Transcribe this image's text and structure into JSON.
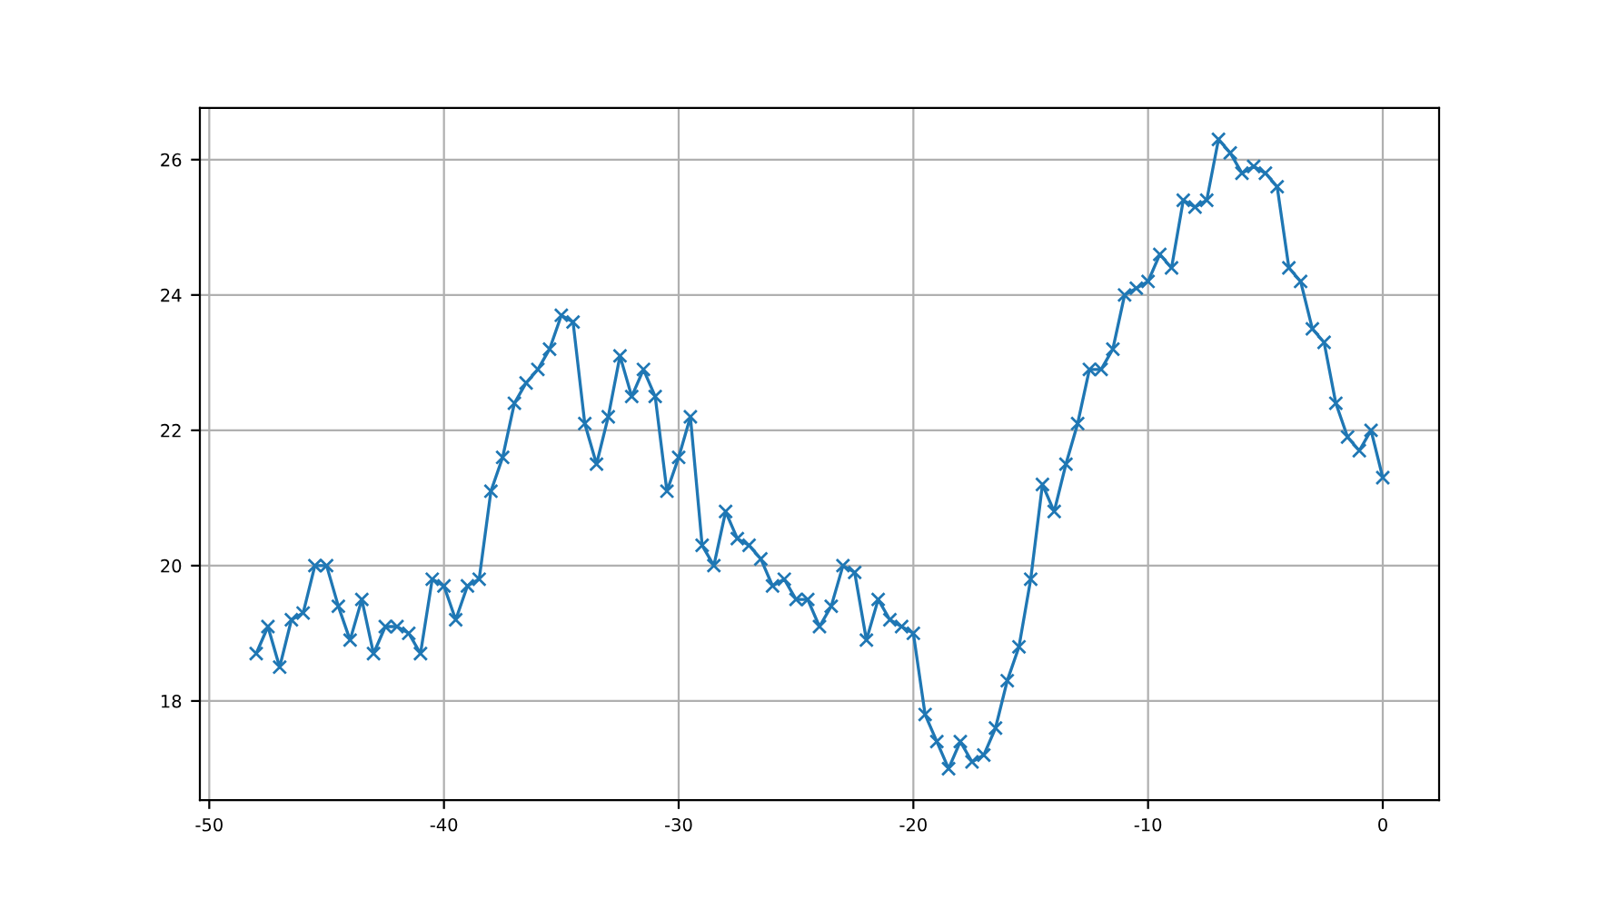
{
  "chart_data": {
    "type": "line",
    "marker": "cross",
    "grid": true,
    "line_style": "solid",
    "x": [
      -48,
      -47.5,
      -47,
      -46.5,
      -46,
      -45.5,
      -45,
      -44.5,
      -44,
      -43.5,
      -43,
      -42.5,
      -42,
      -41.5,
      -41,
      -40.5,
      -40,
      -39.5,
      -39,
      -38.5,
      -38,
      -37.5,
      -37,
      -36.5,
      -36,
      -35.5,
      -35,
      -34.5,
      -34,
      -33.5,
      -33,
      -32.5,
      -32,
      -31.5,
      -31,
      -30.5,
      -30,
      -29.5,
      -29,
      -28.5,
      -28,
      -27.5,
      -27,
      -26.5,
      -26,
      -25.5,
      -25,
      -24.5,
      -24,
      -23.5,
      -23,
      -22.5,
      -22,
      -21.5,
      -21,
      -20.5,
      -20,
      -19.5,
      -19,
      -18.5,
      -18,
      -17.5,
      -17,
      -16.5,
      -16,
      -15.5,
      -15,
      -14.5,
      -14,
      -13.5,
      -13,
      -12.5,
      -12,
      -11.5,
      -11,
      -10.5,
      -10,
      -9.5,
      -9,
      -8.5,
      -8,
      -7.5,
      -7,
      -6.5,
      -6,
      -5.5,
      -5,
      -4.5,
      -4,
      -3.5,
      -3,
      -2.5,
      -2,
      -1.5,
      -1,
      -0.5,
      0
    ],
    "series": [
      {
        "color": "#1f77b4",
        "values": [
          18.7,
          19.1,
          18.5,
          19.2,
          19.3,
          20.0,
          20.0,
          19.4,
          18.9,
          19.5,
          18.7,
          19.1,
          19.1,
          19.0,
          18.7,
          19.8,
          19.7,
          19.2,
          19.7,
          19.8,
          21.1,
          21.6,
          22.4,
          22.7,
          22.9,
          23.2,
          23.7,
          23.6,
          22.1,
          21.5,
          22.2,
          23.1,
          22.5,
          22.9,
          22.5,
          21.1,
          21.6,
          22.2,
          20.3,
          20.0,
          20.8,
          20.4,
          20.3,
          20.1,
          19.7,
          19.8,
          19.5,
          19.5,
          19.1,
          19.4,
          20.0,
          19.9,
          18.9,
          19.5,
          19.2,
          19.1,
          19.0,
          17.8,
          17.4,
          17.0,
          17.4,
          17.1,
          17.2,
          17.6,
          18.3,
          18.8,
          19.8,
          21.2,
          20.8,
          21.5,
          22.1,
          22.9,
          22.9,
          23.2,
          24.0,
          24.1,
          24.2,
          24.6,
          24.4,
          25.4,
          25.3,
          25.4,
          26.3,
          26.1,
          25.8,
          25.9,
          25.8,
          25.6,
          24.4,
          24.2,
          23.5,
          23.3,
          22.4,
          21.9,
          21.7,
          22.0,
          21.3
        ]
      }
    ],
    "xlim": [
      -50.4,
      2.4
    ],
    "xticks": [
      -50,
      -40,
      -30,
      -20,
      -10,
      0
    ],
    "ylim": [
      16.535,
      26.765
    ],
    "yticks": [
      18,
      20,
      22,
      24,
      26
    ]
  }
}
